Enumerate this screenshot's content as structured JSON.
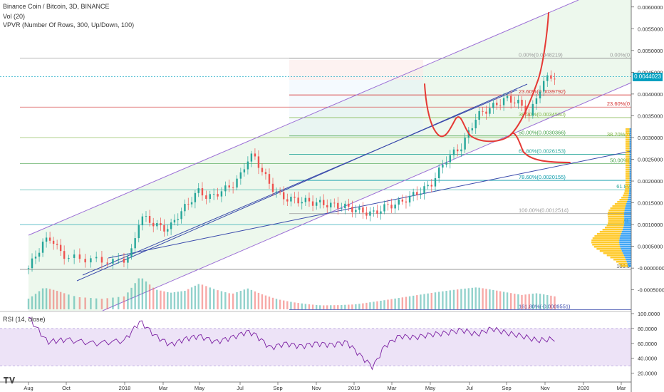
{
  "header": {
    "title": "Binance Coin / Bitcoin, 3D, BINANCE",
    "vol_label": "Vol (20)",
    "vpvr_label": "VPVR (Number Of Rows, 300, Up/Down, 100)"
  },
  "last_price": "0.0044023",
  "rsi": {
    "label": "RSI (14, close)",
    "ticks": [
      "100.0000",
      "80.0000",
      "60.0000",
      "40.0000",
      "20.0000"
    ],
    "values": [
      100,
      80,
      60,
      40,
      20
    ]
  },
  "colors": {
    "up": "#26a69a",
    "down": "#ef5350",
    "channel": "#9c6fd6",
    "trend": "#3949ab",
    "drawing": "#e53935",
    "rsi_line": "#7b1fa2",
    "rsi_band": "#e8dcf5",
    "vpvr_up": "#2196f3",
    "vpvr_down": "#ffc107",
    "price_tag": "#00a0c0"
  },
  "chart_data": {
    "type": "candlestick",
    "symbol": "Binance Coin / Bitcoin",
    "interval": "3D",
    "exchange": "BINANCE",
    "x_ticks": [
      "Aug",
      "Oct",
      "2018",
      "Mar",
      "May",
      "Jul",
      "Sep",
      "Nov",
      "2019",
      "Mar",
      "May",
      "Jul",
      "Sep",
      "Nov",
      "2020",
      "Mar"
    ],
    "y_ticks": [
      0.006,
      0.0055,
      0.005,
      0.0045,
      0.004,
      0.0035,
      0.003,
      0.0025,
      0.002,
      0.0015,
      0.001,
      0.0005,
      0.0,
      -0.0005
    ],
    "y_tick_labels": [
      "0.0060000",
      "0.0055000",
      "0.0050000",
      "0.0045000",
      "0.0040000",
      "0.0035000",
      "0.0030000",
      "0.0025000",
      "0.0020000",
      "0.0015000",
      "0.0010000",
      "0.0005000",
      "-0.0000000",
      "-0.0005000"
    ],
    "ylim": [
      -0.00098,
      0.00616
    ],
    "price_path": [
      [
        0,
        0.0
      ],
      [
        0.4,
        0.0006
      ],
      [
        0.6,
        0.0007
      ],
      [
        0.8,
        0.0004
      ],
      [
        1.0,
        0.00025
      ],
      [
        1.4,
        0.0002
      ],
      [
        1.8,
        0.00015
      ],
      [
        2.0,
        0.0002
      ],
      [
        2.2,
        0.0004
      ],
      [
        2.4,
        0.0012
      ],
      [
        2.6,
        0.0011
      ],
      [
        2.8,
        0.001
      ],
      [
        3.0,
        0.0009
      ],
      [
        3.2,
        0.00095
      ],
      [
        3.4,
        0.0012
      ],
      [
        3.6,
        0.0014
      ],
      [
        3.8,
        0.0016
      ],
      [
        4.0,
        0.0018
      ],
      [
        4.2,
        0.0016
      ],
      [
        4.4,
        0.0017
      ],
      [
        4.6,
        0.0018
      ],
      [
        4.8,
        0.0019
      ],
      [
        5.0,
        0.0021
      ],
      [
        5.2,
        0.0025
      ],
      [
        5.35,
        0.0026
      ],
      [
        5.6,
        0.0022
      ],
      [
        5.8,
        0.0019
      ],
      [
        6.0,
        0.0017
      ],
      [
        6.2,
        0.0016
      ],
      [
        6.6,
        0.00155
      ],
      [
        7.0,
        0.0015
      ],
      [
        7.4,
        0.00145
      ],
      [
        7.8,
        0.0014
      ],
      [
        8.2,
        0.0013
      ],
      [
        8.5,
        0.00125
      ],
      [
        8.8,
        0.0014
      ],
      [
        9.2,
        0.0015
      ],
      [
        9.6,
        0.0017
      ],
      [
        10.0,
        0.0019
      ],
      [
        10.4,
        0.0025
      ],
      [
        10.8,
        0.0028
      ],
      [
        11.2,
        0.0035
      ],
      [
        11.6,
        0.0037
      ],
      [
        12.0,
        0.0039
      ],
      [
        12.3,
        0.0038
      ],
      [
        12.6,
        0.0035
      ],
      [
        12.9,
        0.0042
      ],
      [
        13.1,
        0.0044
      ],
      [
        13.25,
        0.0044023
      ]
    ],
    "volume_path": [
      [
        0,
        25
      ],
      [
        0.4,
        42
      ],
      [
        0.8,
        30
      ],
      [
        1.2,
        18
      ],
      [
        1.6,
        14
      ],
      [
        2.0,
        16
      ],
      [
        2.4,
        38
      ],
      [
        2.8,
        22
      ],
      [
        3.2,
        18
      ],
      [
        3.6,
        20
      ],
      [
        4.0,
        28
      ],
      [
        4.4,
        22
      ],
      [
        4.8,
        18
      ],
      [
        5.2,
        26
      ],
      [
        5.6,
        20
      ],
      [
        6.0,
        15
      ],
      [
        6.4,
        12
      ],
      [
        6.8,
        10
      ],
      [
        7.2,
        9
      ],
      [
        7.6,
        8
      ],
      [
        8.0,
        8
      ],
      [
        8.4,
        10
      ],
      [
        8.8,
        12
      ],
      [
        9.2,
        14
      ],
      [
        9.6,
        16
      ],
      [
        10.0,
        18
      ],
      [
        10.4,
        20
      ],
      [
        10.8,
        22
      ],
      [
        11.2,
        24
      ],
      [
        11.6,
        22
      ],
      [
        12.0,
        20
      ],
      [
        12.4,
        18
      ],
      [
        12.8,
        22
      ],
      [
        13.25,
        20
      ]
    ],
    "rsi_path": [
      [
        0,
        95
      ],
      [
        0.5,
        62
      ],
      [
        1.0,
        65
      ],
      [
        1.5,
        60
      ],
      [
        2.0,
        64
      ],
      [
        2.4,
        90
      ],
      [
        2.8,
        70
      ],
      [
        3.2,
        58
      ],
      [
        3.6,
        66
      ],
      [
        4.0,
        70
      ],
      [
        4.4,
        62
      ],
      [
        4.8,
        68
      ],
      [
        5.2,
        76
      ],
      [
        5.4,
        72
      ],
      [
        5.8,
        54
      ],
      [
        6.2,
        60
      ],
      [
        6.6,
        56
      ],
      [
        7.0,
        60
      ],
      [
        7.4,
        58
      ],
      [
        7.8,
        62
      ],
      [
        8.2,
        42
      ],
      [
        8.5,
        28
      ],
      [
        8.8,
        56
      ],
      [
        9.2,
        70
      ],
      [
        9.6,
        68
      ],
      [
        10.0,
        72
      ],
      [
        10.4,
        74
      ],
      [
        10.8,
        78
      ],
      [
        11.2,
        72
      ],
      [
        11.6,
        80
      ],
      [
        12.0,
        74
      ],
      [
        12.4,
        70
      ],
      [
        12.8,
        64
      ],
      [
        13.25,
        66
      ]
    ],
    "fib_right": [
      {
        "label": "0.00%(0.0048219)",
        "value": 0.0048219
      },
      {
        "label": "23.60%(0.0039792)",
        "value": 0.0039792
      },
      {
        "label": "38.20%(0.0034580)",
        "value": 0.003458
      },
      {
        "label": "50.00%(0.0030366)",
        "value": 0.0030366
      },
      {
        "label": "61.80%(0.0026153)",
        "value": 0.0026153
      },
      {
        "label": "78.60%(0.0020155)",
        "value": 0.0020155
      },
      {
        "label": "100.00%(0.0012514)",
        "value": 0.0012514
      },
      {
        "label": "161.80%(-0.0009551)",
        "value": -0.0009551
      }
    ],
    "fib_left_levels": [
      {
        "label": "0.00%(0",
        "value": 0.0048219
      },
      {
        "label": "23.60%(0",
        "value": 0.0037
      },
      {
        "label": "38.20%(0",
        "value": 0.003
      },
      {
        "label": "50.00%(",
        "value": 0.0024
      },
      {
        "label": "61.80",
        "value": 0.0018
      },
      {
        "label": "78.",
        "value": 0.001
      },
      {
        "label": "100.0",
        "value": -3e-05
      }
    ]
  }
}
